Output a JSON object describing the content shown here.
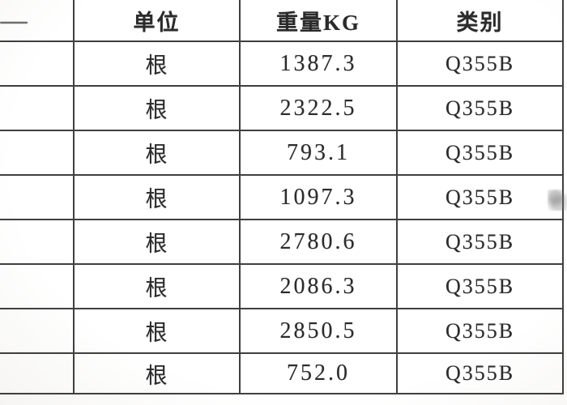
{
  "page": {
    "background_color": "#ffffff",
    "grid_line_color": "#3f3f3f",
    "text_color": "#2b2b2b"
  },
  "table": {
    "headers": {
      "col0": "",
      "unit": "单位",
      "weight": "重量KG",
      "category": "类别"
    },
    "rows": [
      {
        "col0": "",
        "unit": "根",
        "weight": "1387.3",
        "category": "Q355B"
      },
      {
        "col0": "",
        "unit": "根",
        "weight": "2322.5",
        "category": "Q355B"
      },
      {
        "col0": "",
        "unit": "根",
        "weight": "793.1",
        "category": "Q355B"
      },
      {
        "col0": "",
        "unit": "根",
        "weight": "1097.3",
        "category": "Q355B"
      },
      {
        "col0": "",
        "unit": "根",
        "weight": "2780.6",
        "category": "Q355B"
      },
      {
        "col0": "",
        "unit": "根",
        "weight": "2086.3",
        "category": "Q355B"
      },
      {
        "col0": "",
        "unit": "根",
        "weight": "2850.5",
        "category": "Q355B"
      },
      {
        "col0": "",
        "unit": "根",
        "weight": "752.0",
        "category": "Q355B"
      }
    ],
    "artifacts": {
      "partial_gridline": "top-left-edge",
      "watermark_smudge": "illegible-gray-mark"
    }
  }
}
